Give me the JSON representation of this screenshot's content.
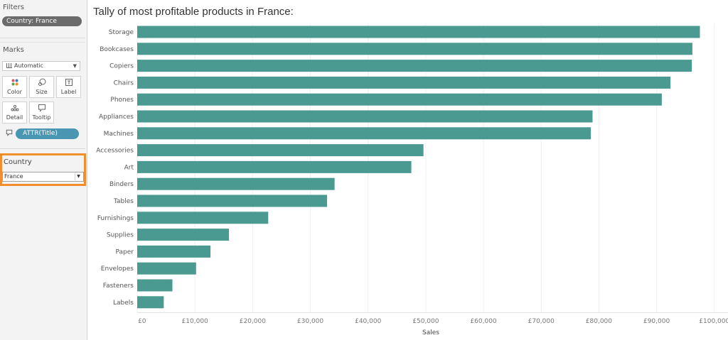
{
  "filters": {
    "title": "Filters",
    "pill": "Country: France"
  },
  "marks": {
    "title": "Marks",
    "mark_type": "Automatic",
    "buttons": [
      {
        "label": "Color",
        "icon": "color-dots-icon"
      },
      {
        "label": "Size",
        "icon": "size-icon"
      },
      {
        "label": "Label",
        "icon": "label-icon"
      },
      {
        "label": "Detail",
        "icon": "detail-icon"
      },
      {
        "label": "Tooltip",
        "icon": "tooltip-icon"
      }
    ],
    "tooltip_field": "ATTR(Title)"
  },
  "country_filter": {
    "title": "Country",
    "selected": "France"
  },
  "colors": {
    "bar": "#4a9a91",
    "highlight_border": "#f28e2b",
    "pill_blue": "#4996b2"
  },
  "chart_data": {
    "type": "bar",
    "orientation": "horizontal",
    "title": "Tally of most profitable products in France:",
    "xlabel": "Sales",
    "ylabel": "",
    "xlim": [
      0,
      102000
    ],
    "x_ticks": [
      0,
      10000,
      20000,
      30000,
      40000,
      50000,
      60000,
      70000,
      80000,
      90000,
      100000
    ],
    "x_tick_labels": [
      "£0",
      "£10,000",
      "£20,000",
      "£30,000",
      "£40,000",
      "£50,000",
      "£60,000",
      "£70,000",
      "£80,000",
      "£90,000",
      "£100,000"
    ],
    "categories": [
      "Storage",
      "Bookcases",
      "Copiers",
      "Chairs",
      "Phones",
      "Appliances",
      "Machines",
      "Accessories",
      "Art",
      "Binders",
      "Tables",
      "Furnishings",
      "Supplies",
      "Paper",
      "Envelopes",
      "Fasteners",
      "Labels"
    ],
    "values": [
      97500,
      96200,
      96100,
      92400,
      90900,
      78900,
      78600,
      49600,
      47500,
      34200,
      32900,
      22700,
      15900,
      12700,
      10200,
      6100,
      4600
    ]
  }
}
